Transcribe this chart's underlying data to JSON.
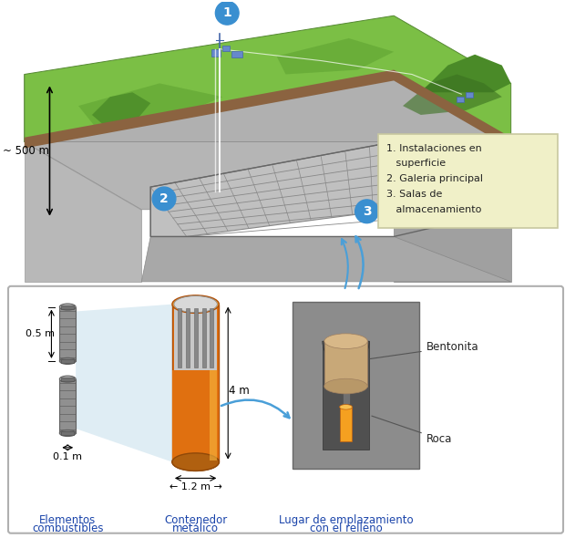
{
  "legend_items": [
    "1. Instalaciones en\n   superficie",
    "2. Galeria principal",
    "3. Salas de\n   almacenamiento"
  ],
  "labels": {
    "depth": "~ 500 m",
    "fuel_height": "0.5 m",
    "fuel_diam": "0.1 m",
    "container_height": "4 m",
    "container_diam": "← 1.2 m →",
    "bentonite": "Bentonita",
    "rock": "Roca",
    "fuel_label1": "Elementos",
    "fuel_label2": "combustibles",
    "container_label1": "Contenedor",
    "container_label2": "metálico",
    "site_label1": "Lugar de emplazamiento",
    "site_label2": "con el relleno"
  },
  "colors": {
    "background": "#ffffff",
    "grass_light": "#7bbf45",
    "grass_dark": "#5a9e2f",
    "dirt": "#8B6340",
    "rock_top": "#b0b0b0",
    "rock_mid": "#a0a0a0",
    "rock_dark": "#909090",
    "rock_side": "#c0c0c0",
    "legend_bg": "#f0f0c8",
    "legend_border": "#c8c8a0",
    "container_orange_light": "#f5a020",
    "container_orange": "#e07010",
    "container_orange_dark": "#c05808",
    "bentonite_color": "#c8a878",
    "bentonite_light": "#d8b888",
    "circle_blue": "#3a8fd0",
    "circle_text": "#ffffff",
    "arrow_blue": "#4a9fd8",
    "tunnel_bg": "#c8c8c8",
    "tunnel_grid": "#888888",
    "arch_dark": "#505050",
    "arch_darker": "#383838",
    "fuel_gray": "#909090",
    "fuel_light": "#b0b0b0",
    "hill_green": "#4a8a28",
    "hill_dark": "#3a7020"
  }
}
